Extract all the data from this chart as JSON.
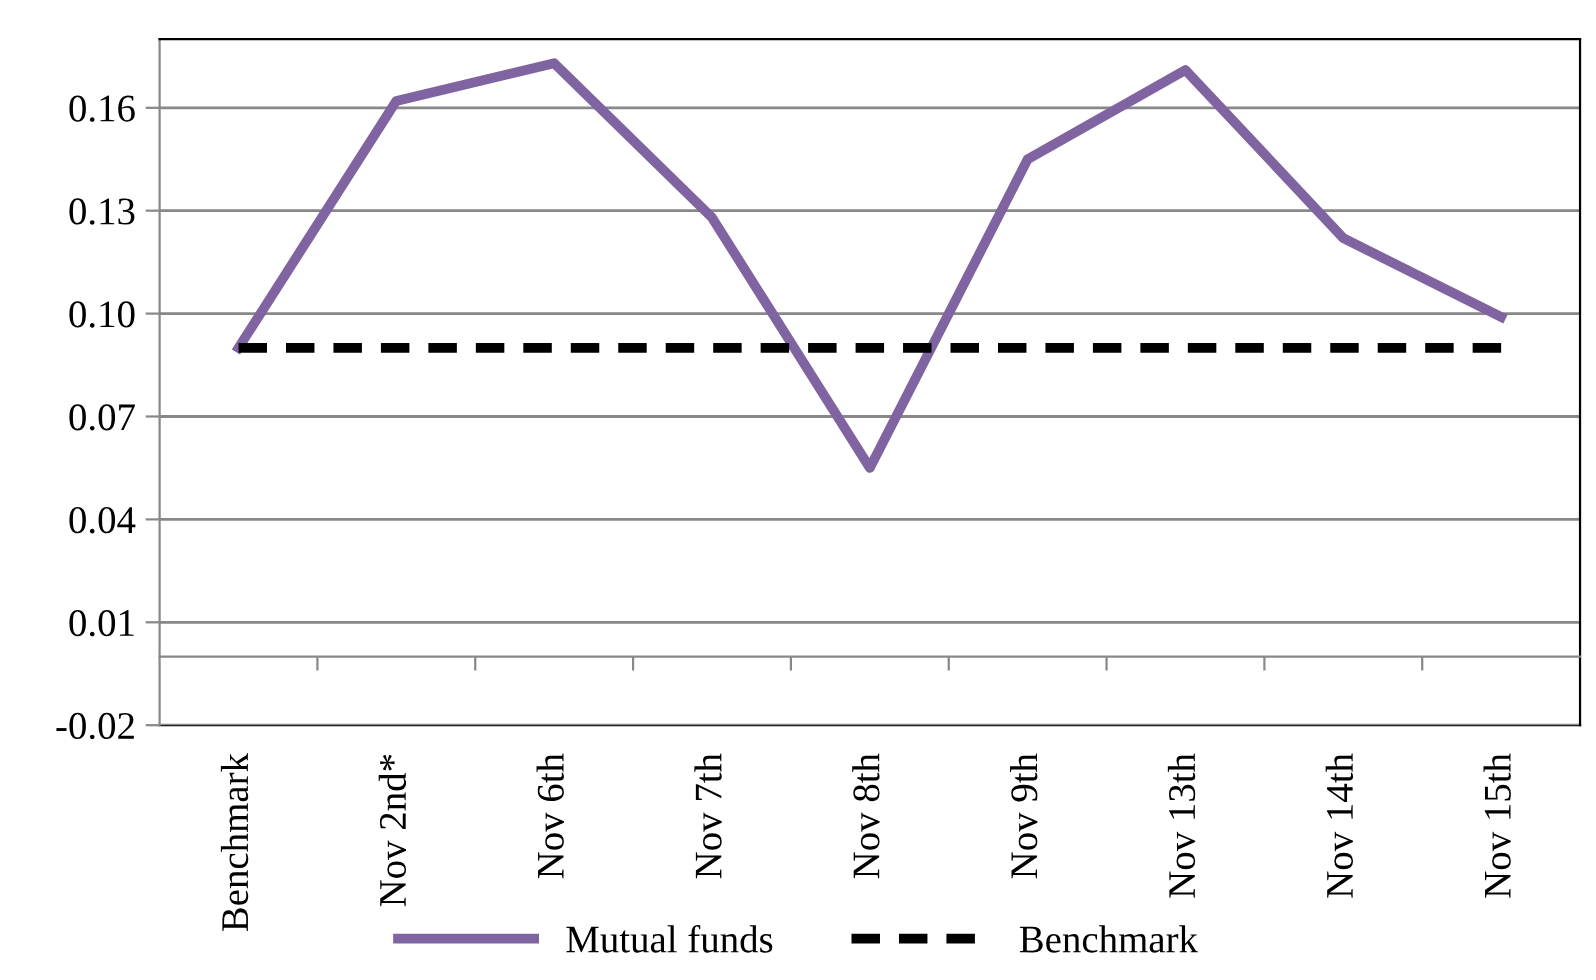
{
  "chart_data": {
    "type": "line",
    "categories": [
      "Benchmark",
      "Nov 2nd*",
      "Nov 6th",
      "Nov 7th",
      "Nov 8th",
      "Nov 9th",
      "Nov 13th",
      "Nov 14th",
      "Nov 15th"
    ],
    "series": [
      {
        "name": "Mutual funds",
        "color": "#8064a2",
        "line_style": "solid",
        "values": [
          0.09,
          0.162,
          0.173,
          0.128,
          0.055,
          0.145,
          0.171,
          0.122,
          0.099
        ]
      },
      {
        "name": "Benchmark",
        "color": "#000000",
        "line_style": "dashed",
        "values": [
          0.09,
          0.09,
          0.09,
          0.09,
          0.09,
          0.09,
          0.09,
          0.09,
          0.09
        ]
      }
    ],
    "ylim": [
      -0.02,
      0.18
    ],
    "yticks": [
      {
        "value": -0.02,
        "label": "-0.02"
      },
      {
        "value": 0.01,
        "label": "0.01"
      },
      {
        "value": 0.04,
        "label": "0.04"
      },
      {
        "value": 0.07,
        "label": "0.07"
      },
      {
        "value": 0.1,
        "label": "0.10"
      },
      {
        "value": 0.13,
        "label": "0.13"
      },
      {
        "value": 0.16,
        "label": "0.16"
      }
    ],
    "grid": "y",
    "legend": "bottom",
    "marker": "none"
  }
}
